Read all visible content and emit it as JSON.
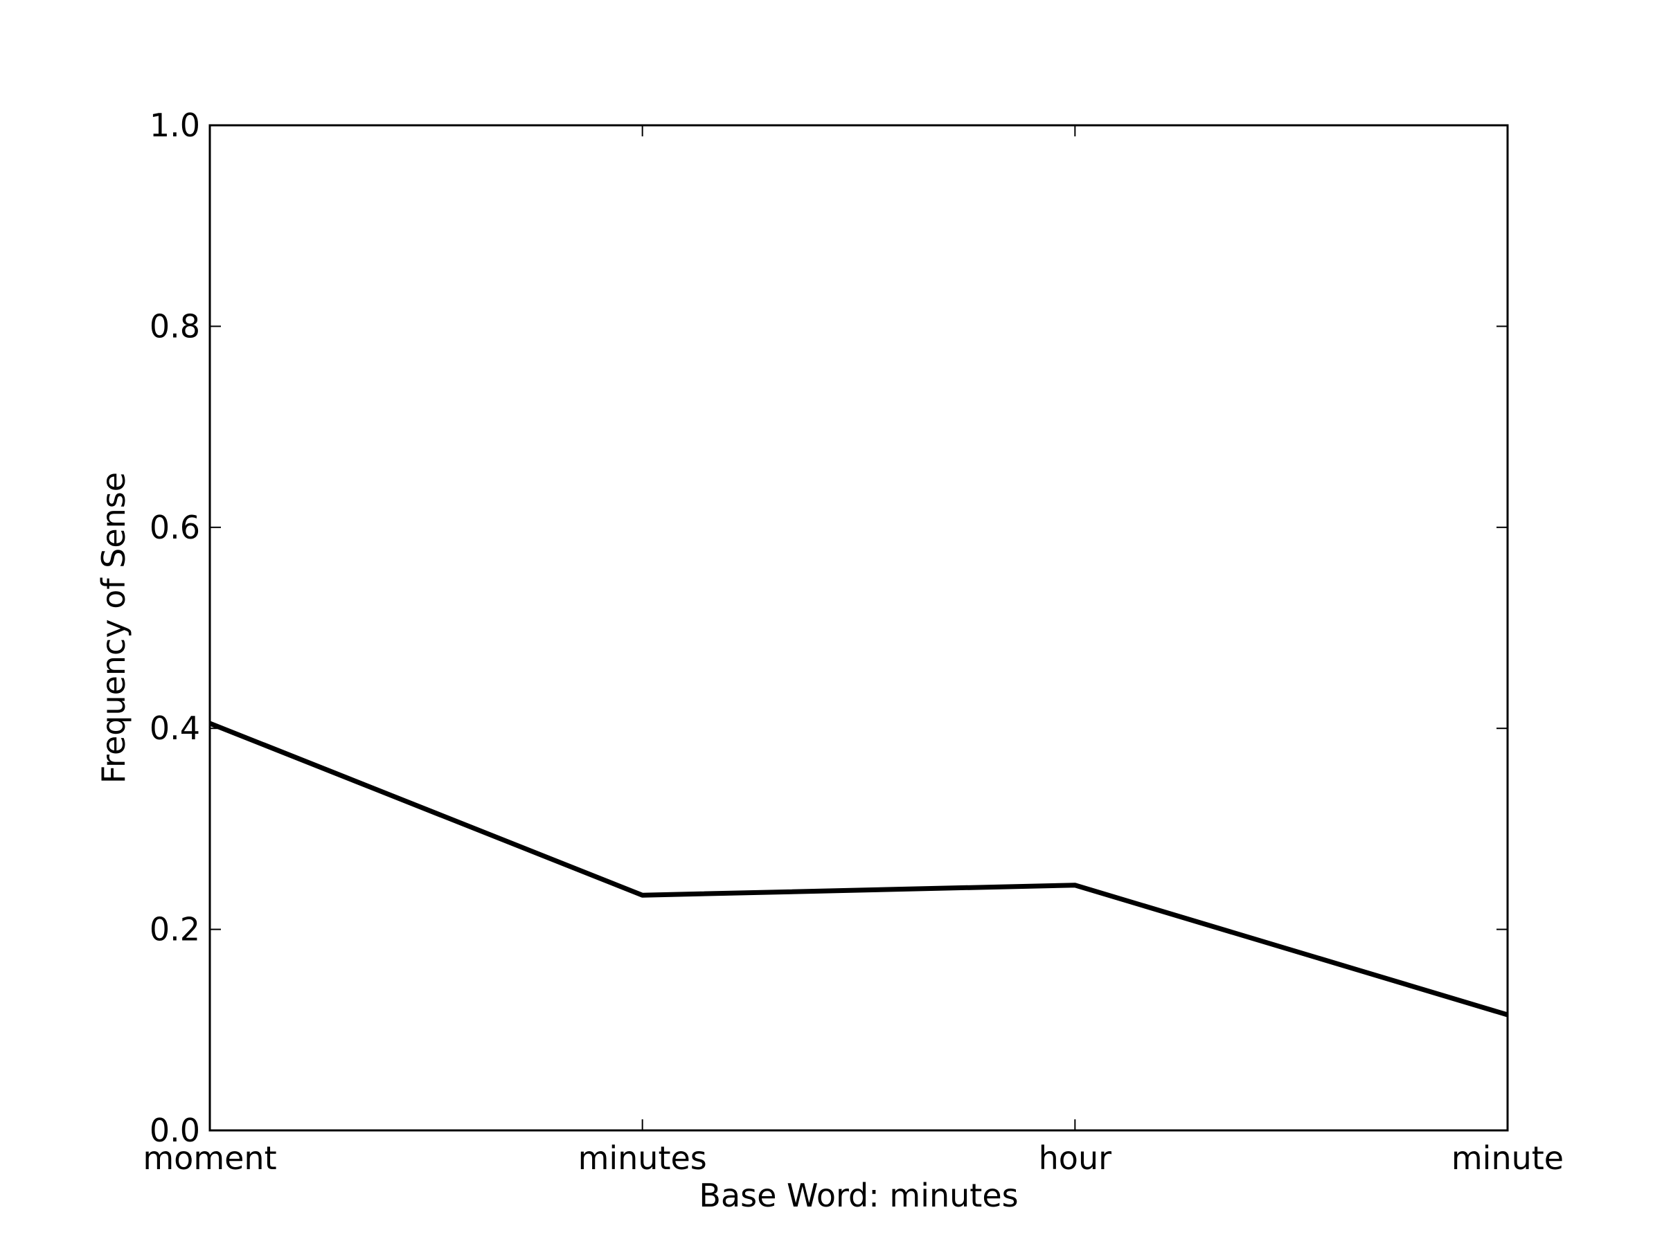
{
  "chart_data": {
    "type": "line",
    "title": "",
    "xlabel": "Base Word: minutes",
    "ylabel": "Frequency of Sense",
    "categories": [
      "moment",
      "minutes",
      "hour",
      "minute"
    ],
    "series": [
      {
        "values": [
          0.405,
          0.234,
          0.244,
          0.115
        ],
        "color": "#000000"
      }
    ],
    "ylim": [
      0.0,
      1.0
    ],
    "yticks": [
      0.0,
      0.2,
      0.4,
      0.6,
      0.8,
      1.0
    ],
    "ytick_labels": [
      "0.0",
      "0.2",
      "0.4",
      "0.6",
      "0.8",
      "1.0"
    ],
    "grid": false,
    "legend": false
  }
}
